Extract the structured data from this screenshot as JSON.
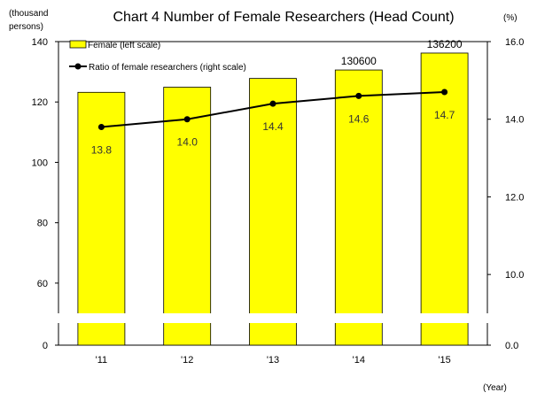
{
  "chart_data": {
    "type": "bar",
    "title": "Chart 4   Number of Female Researchers (Head Count)",
    "left_unit": [
      "(thousand",
      "persons)"
    ],
    "right_unit": "(%)",
    "xlabel": "(Year)",
    "categories": [
      "'11",
      "'12",
      "'13",
      "'14",
      "'15"
    ],
    "left_ticks": [
      "140",
      "120",
      "100",
      "80",
      "60",
      "0"
    ],
    "right_ticks": [
      "16.0",
      "14.0",
      "12.0",
      "10.0",
      "0.0"
    ],
    "axis_break": true,
    "left_axis": {
      "lower_range": [
        0,
        5
      ],
      "upper_range": [
        50,
        140
      ]
    },
    "right_axis": {
      "lower_range": [
        0.0,
        0.5
      ],
      "upper_range": [
        9.0,
        16.0
      ]
    },
    "series": [
      {
        "name": "Female (left scale)",
        "type": "bar",
        "axis": "left",
        "color": "#ffff00",
        "values": [
          123.2,
          124.9,
          127.8,
          130.6,
          136.2
        ],
        "data_labels": [
          "",
          "",
          "",
          "130600",
          "136200"
        ]
      },
      {
        "name": "Ratio of female researchers (right scale)",
        "type": "line",
        "axis": "right",
        "color": "#000000",
        "values": [
          13.8,
          14.0,
          14.4,
          14.6,
          14.7
        ],
        "data_labels": [
          "13.8",
          "14.0",
          "14.4",
          "14.6",
          "14.7"
        ]
      }
    ],
    "legend_position": "top-left",
    "grid": false
  }
}
